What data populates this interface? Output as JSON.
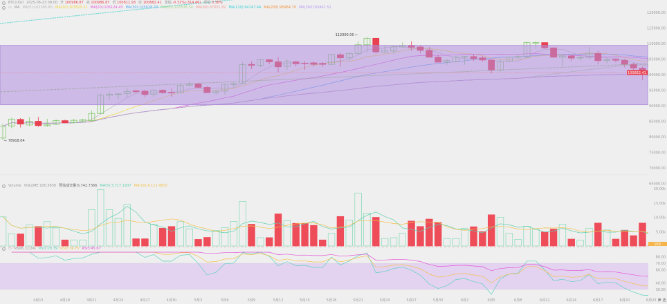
{
  "header": {
    "symbol": "BTC/USD",
    "datetime": "2025-06-23 08:00",
    "open_label": "开",
    "open": "100986.87",
    "high_label": "高",
    "high": "100986.87",
    "low_label": "低",
    "low": "100611.93",
    "close_label": "收",
    "close": "100682.41",
    "change_label": "涨幅",
    "change": "-0.31%(-314.46)",
    "amplitude_label": "振幅",
    "amplitude": "0.38%"
  },
  "ma_legend": {
    "title": "MA",
    "items": [
      {
        "text": "MA(5):102385.80",
        "color": "#b8b8b8"
      },
      {
        "text": "MA(10):103825.31",
        "color": "#f2d33c"
      },
      {
        "text": "MA(20):105124.43",
        "color": "#e455d8"
      },
      {
        "text": "MA(30):105628.73",
        "color": "#5aa9f0"
      },
      {
        "text": "MA(60):100536.54",
        "color": "#a6d68a"
      },
      {
        "text": "MA(90):97031.82",
        "color": "#f29a9a"
      },
      {
        "text": "MA(120):94147.44",
        "color": "#36cfd6"
      },
      {
        "text": "MA(200):95964.70",
        "color": "#f0903a"
      },
      {
        "text": "MA(360):83462.52",
        "color": "#b99cf0"
      }
    ]
  },
  "volume_legend": {
    "title": "Volume",
    "volume": "VOLUME:100.3650",
    "estimate": "预估成交量:6,742.7366",
    "ma5": "MA(5):3,717.1937",
    "ma10": "MA(10):4,112.4815",
    "ma5_color": "#5fd0b0",
    "ma10_color": "#f5c04a"
  },
  "rsi_legend": {
    "title": "RSI(6,12,24)",
    "rsi1": "RSI1:20.39",
    "rsi2": "RSI2:34.75",
    "rsi3": "RSI3:45.67",
    "rsi1_color": "#5fd0c0",
    "rsi2_color": "#f5c04a",
    "rsi3_color": "#e455d8"
  },
  "colors": {
    "up": "#7fc76a",
    "down": "#e8414f",
    "box": "#b08ee0",
    "rsi_band": "#e3d3f0"
  },
  "annotations": {
    "max_label": "112000.00",
    "min_label": "78918.04",
    "last_price": "100682.41",
    "last_volume": "100"
  },
  "price_axis": [
    "120000.00",
    "115000.00",
    "110000.00",
    "105000.00",
    "100000.00",
    "95000.00",
    "90000.00",
    "85000.00",
    "80000.00",
    "75000.00",
    "70000.00",
    "65000.00"
  ],
  "volume_axis": [
    "20.00k",
    "15.00k",
    "10.00k",
    "5.00k"
  ],
  "rsi_axis": [
    "80.00",
    "70.00",
    "60.00",
    "40.00",
    "30.00"
  ],
  "x_axis": [
    "4月15",
    "4月18",
    "4月21",
    "4月24",
    "4月27",
    "4月30",
    "5月3",
    "5月6",
    "5月9",
    "5月12",
    "5月15",
    "5月18",
    "5月21",
    "5月24",
    "5月27",
    "5月30",
    "6月2",
    "6月5",
    "6月8",
    "6月11",
    "6月14",
    "6月17",
    "6月20",
    "6月23"
  ],
  "footer_buttons": [
    "筛",
    "选"
  ],
  "chart_data": {
    "type": "candlestick",
    "symbol": "BTC/USD",
    "price_range": [
      65000,
      120000
    ],
    "columns": [
      "date",
      "open",
      "high",
      "low",
      "close",
      "volume_k"
    ],
    "candles": [
      [
        "4/11",
        79600,
        84200,
        78918,
        83400,
        10.2
      ],
      [
        "4/12",
        83500,
        86100,
        82800,
        85700,
        4.2
      ],
      [
        "4/13",
        85600,
        86000,
        83000,
        84100,
        4.2
      ],
      [
        "4/14",
        83800,
        86300,
        83500,
        85000,
        7.4
      ],
      [
        "4/15",
        85000,
        86400,
        83200,
        83600,
        6.8
      ],
      [
        "4/16",
        83600,
        85800,
        83200,
        84000,
        8.5
      ],
      [
        "4/17",
        84000,
        85600,
        83800,
        85200,
        6.3
      ],
      [
        "4/18",
        85200,
        85500,
        84400,
        84500,
        2.1
      ],
      [
        "4/19",
        84600,
        85800,
        84200,
        85300,
        2.1
      ],
      [
        "4/20",
        85100,
        85800,
        84600,
        85500,
        2.1
      ],
      [
        "4/21",
        85200,
        88400,
        85200,
        87500,
        12.7
      ],
      [
        "4/22",
        87500,
        93900,
        87400,
        93400,
        19.7
      ],
      [
        "4/23",
        93400,
        94500,
        91800,
        93700,
        12.7
      ],
      [
        "4/24",
        93600,
        94000,
        92000,
        93800,
        9.6
      ],
      [
        "4/25",
        93900,
        95600,
        92700,
        94600,
        14.5
      ],
      [
        "4/26",
        94800,
        95200,
        94000,
        94500,
        2.5
      ],
      [
        "4/27",
        94700,
        95100,
        92800,
        93600,
        2.5
      ],
      [
        "4/28",
        93700,
        95300,
        92800,
        95000,
        7.6
      ],
      [
        "4/29",
        95000,
        95300,
        93800,
        94200,
        6.2
      ],
      [
        "4/30",
        94300,
        95500,
        92900,
        94200,
        6.8
      ],
      [
        "5/1",
        94200,
        97200,
        94200,
        96500,
        8.5
      ],
      [
        "5/2",
        96600,
        97900,
        96300,
        96900,
        6.0
      ],
      [
        "5/3",
        97000,
        97400,
        95700,
        95900,
        2.3
      ],
      [
        "5/4",
        95900,
        96300,
        94100,
        94200,
        3.0
      ],
      [
        "5/5",
        94300,
        95000,
        93500,
        94700,
        5.4
      ],
      [
        "5/6",
        94700,
        97000,
        93600,
        96900,
        6.4
      ],
      [
        "5/7",
        96800,
        97700,
        95800,
        97100,
        8.6
      ],
      [
        "5/8",
        97100,
        104000,
        96900,
        103200,
        15.6
      ],
      [
        "5/9",
        103300,
        104300,
        101800,
        103000,
        7.6
      ],
      [
        "5/10",
        103000,
        104900,
        102400,
        104800,
        2.9
      ],
      [
        "5/11",
        104800,
        105000,
        103300,
        104100,
        2.9
      ],
      [
        "5/12",
        104100,
        105700,
        100800,
        102500,
        11.2
      ],
      [
        "5/13",
        102700,
        104900,
        101500,
        104200,
        8.9
      ],
      [
        "5/14",
        104100,
        104500,
        102600,
        103500,
        7.9
      ],
      [
        "5/15",
        103700,
        104300,
        101500,
        103600,
        7.9
      ],
      [
        "5/16",
        103800,
        104100,
        102600,
        103300,
        7.2
      ],
      [
        "5/17",
        103600,
        104000,
        102500,
        103300,
        2.1
      ],
      [
        "5/18",
        103300,
        106600,
        103100,
        106500,
        4.4
      ],
      [
        "5/19",
        106400,
        107000,
        102500,
        105400,
        10.3
      ],
      [
        "5/20",
        105400,
        107200,
        104500,
        106800,
        9.0
      ],
      [
        "5/21",
        106800,
        110700,
        106500,
        109600,
        18.5
      ],
      [
        "5/22",
        109600,
        112000,
        107200,
        111700,
        11.5
      ],
      [
        "5/23",
        111700,
        111800,
        106800,
        107300,
        10.0
      ],
      [
        "5/24",
        107200,
        109500,
        106800,
        107800,
        2.6
      ],
      [
        "5/25",
        107600,
        109500,
        106700,
        108900,
        2.9
      ],
      [
        "5/26",
        108900,
        110400,
        108600,
        109400,
        4.5
      ],
      [
        "5/27",
        109400,
        110700,
        107600,
        108800,
        8.7
      ],
      [
        "5/28",
        108900,
        109300,
        106800,
        107800,
        6.8
      ],
      [
        "5/29",
        107800,
        108900,
        105600,
        105600,
        9.4
      ],
      [
        "5/30",
        105600,
        106400,
        103900,
        104000,
        8.2
      ],
      [
        "5/31",
        104000,
        105000,
        103200,
        104500,
        2.6
      ],
      [
        "6/1",
        104100,
        106000,
        103900,
        105600,
        2.6
      ],
      [
        "6/2",
        105600,
        106000,
        103200,
        105800,
        6.2
      ],
      [
        "6/3",
        105800,
        106600,
        104300,
        105200,
        6.7
      ],
      [
        "6/4",
        105400,
        106000,
        104200,
        104700,
        5.0
      ],
      [
        "6/5",
        104700,
        105000,
        100400,
        101500,
        10.9
      ],
      [
        "6/6",
        101500,
        105000,
        101000,
        104300,
        10.0
      ],
      [
        "6/7",
        104300,
        105800,
        104100,
        105600,
        4.4
      ],
      [
        "6/8",
        105600,
        106500,
        105100,
        105800,
        2.3
      ],
      [
        "6/9",
        105700,
        110600,
        105400,
        110300,
        6.9
      ],
      [
        "6/10",
        110200,
        110600,
        108300,
        110300,
        5.8
      ],
      [
        "6/11",
        110300,
        110400,
        108300,
        108600,
        4.9
      ],
      [
        "6/12",
        108600,
        108900,
        105500,
        105600,
        5.9
      ],
      [
        "6/13",
        105600,
        106300,
        102700,
        106000,
        7.6
      ],
      [
        "6/14",
        106000,
        106300,
        104300,
        105300,
        2.4
      ],
      [
        "6/15",
        105400,
        106000,
        104400,
        105500,
        2.0
      ],
      [
        "6/16",
        105500,
        108900,
        104900,
        106700,
        6.2
      ],
      [
        "6/17",
        106800,
        107700,
        103400,
        104500,
        8.0
      ],
      [
        "6/18",
        104500,
        105500,
        103600,
        104800,
        5.6
      ],
      [
        "6/19",
        104900,
        105200,
        103900,
        104600,
        2.4
      ],
      [
        "6/20",
        104600,
        105000,
        102300,
        103300,
        5.5
      ],
      [
        "6/21",
        103300,
        103800,
        101200,
        102100,
        3.6
      ],
      [
        "6/22",
        102100,
        102600,
        98200,
        100900,
        8.0
      ],
      [
        "6/23",
        100986.87,
        100986.87,
        100611.93,
        100682.41,
        0.1
      ]
    ]
  }
}
